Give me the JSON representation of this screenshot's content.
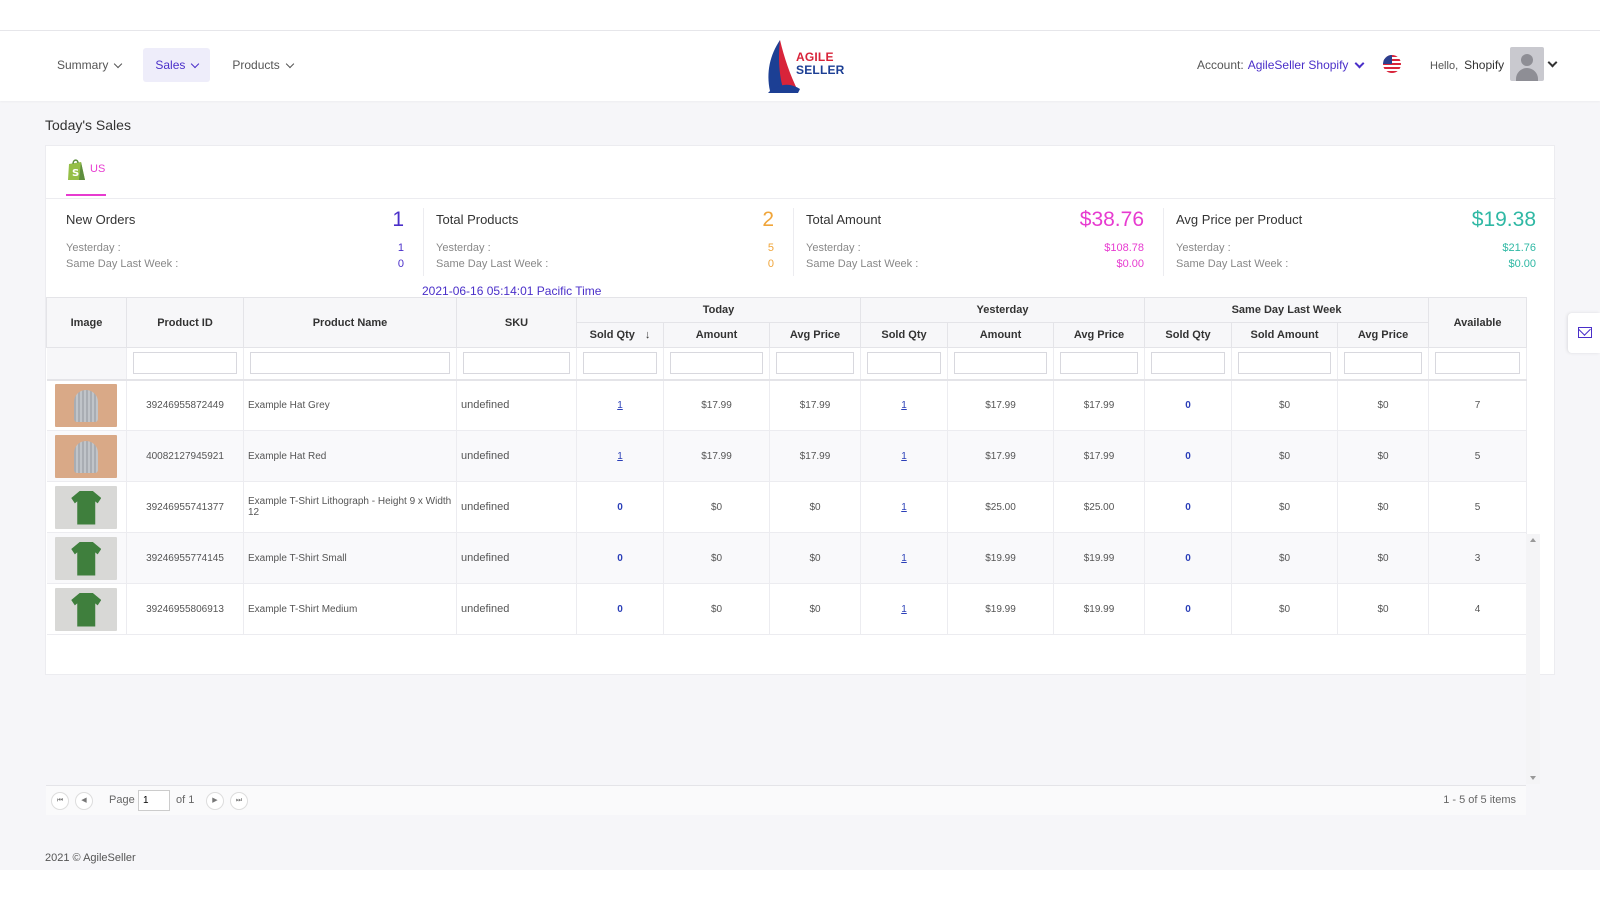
{
  "nav": {
    "summary": "Summary",
    "sales": "Sales",
    "products": "Products"
  },
  "logo": {
    "line1": "AGILE",
    "line2": "SELLER"
  },
  "account": {
    "label": "Account:",
    "name": "AgileSeller Shopify"
  },
  "user": {
    "hello": "Hello,",
    "name": "Shopify"
  },
  "page": {
    "title": "Today's Sales"
  },
  "store_tab": {
    "label": "US"
  },
  "stats": {
    "new_orders": {
      "title": "New Orders",
      "value": "1",
      "yesterday_label": "Yesterday :",
      "yesterday": "1",
      "last_week_label": "Same Day Last Week :",
      "last_week": "0",
      "color": "#4a2fc9"
    },
    "total_products": {
      "title": "Total Products",
      "value": "2",
      "yesterday_label": "Yesterday :",
      "yesterday": "5",
      "last_week_label": "Same Day Last Week :",
      "last_week": "0",
      "color": "#f0a53a"
    },
    "total_amount": {
      "title": "Total Amount",
      "value": "$38.76",
      "yesterday_label": "Yesterday :",
      "yesterday": "$108.78",
      "last_week_label": "Same Day Last Week :",
      "last_week": "$0.00",
      "color": "#e73bd0"
    },
    "avg_price": {
      "title": "Avg Price per Product",
      "value": "$19.38",
      "yesterday_label": "Yesterday :",
      "yesterday": "$21.76",
      "last_week_label": "Same Day Last Week :",
      "last_week": "$0.00",
      "color": "#2fb8a4"
    }
  },
  "timestamp": "2021-06-16 05:14:01 Pacific Time",
  "grid": {
    "headers": {
      "image": "Image",
      "product_id": "Product ID",
      "product_name": "Product Name",
      "sku": "SKU",
      "today": "Today",
      "yesterday": "Yesterday",
      "last_week": "Same Day Last Week",
      "available": "Available",
      "sold_qty": "Sold Qty",
      "amount": "Amount",
      "avg_price": "Avg Price",
      "sold_amount": "Sold Amount",
      "sort_arrow": "↓"
    },
    "rows": [
      {
        "thumb": "hat",
        "product_id": "39246955872449",
        "name": "Example Hat Grey",
        "sku": "undefined",
        "t_qty": "1",
        "t_amount": "$17.99",
        "t_avg": "$17.99",
        "y_qty": "1",
        "y_amount": "$17.99",
        "y_avg": "$17.99",
        "w_qty": "0",
        "w_amount": "$0",
        "w_avg": "$0",
        "available": "7"
      },
      {
        "thumb": "hat",
        "product_id": "40082127945921",
        "name": "Example Hat Red",
        "sku": "undefined",
        "t_qty": "1",
        "t_amount": "$17.99",
        "t_avg": "$17.99",
        "y_qty": "1",
        "y_amount": "$17.99",
        "y_avg": "$17.99",
        "w_qty": "0",
        "w_amount": "$0",
        "w_avg": "$0",
        "available": "5"
      },
      {
        "thumb": "shirt",
        "product_id": "39246955741377",
        "name": "Example T-Shirt Lithograph - Height 9 x Width 12",
        "sku": "undefined",
        "t_qty": "0",
        "t_amount": "$0",
        "t_avg": "$0",
        "y_qty": "1",
        "y_amount": "$25.00",
        "y_avg": "$25.00",
        "w_qty": "0",
        "w_amount": "$0",
        "w_avg": "$0",
        "available": "5"
      },
      {
        "thumb": "shirt",
        "product_id": "39246955774145",
        "name": "Example T-Shirt Small",
        "sku": "undefined",
        "t_qty": "0",
        "t_amount": "$0",
        "t_avg": "$0",
        "y_qty": "1",
        "y_amount": "$19.99",
        "y_avg": "$19.99",
        "w_qty": "0",
        "w_amount": "$0",
        "w_avg": "$0",
        "available": "3"
      },
      {
        "thumb": "shirt",
        "product_id": "39246955806913",
        "name": "Example T-Shirt Medium",
        "sku": "undefined",
        "t_qty": "0",
        "t_amount": "$0",
        "t_avg": "$0",
        "y_qty": "1",
        "y_amount": "$19.99",
        "y_avg": "$19.99",
        "w_qty": "0",
        "w_amount": "$0",
        "w_avg": "$0",
        "available": "4"
      }
    ]
  },
  "pager": {
    "first": "⏮",
    "prev": "◀",
    "next": "▶",
    "last": "⏭",
    "page_label": "Page",
    "page_value": "1",
    "of_label": "of 1",
    "count": "1 - 5 of 5 items"
  },
  "footer": "2021 © AgileSeller"
}
